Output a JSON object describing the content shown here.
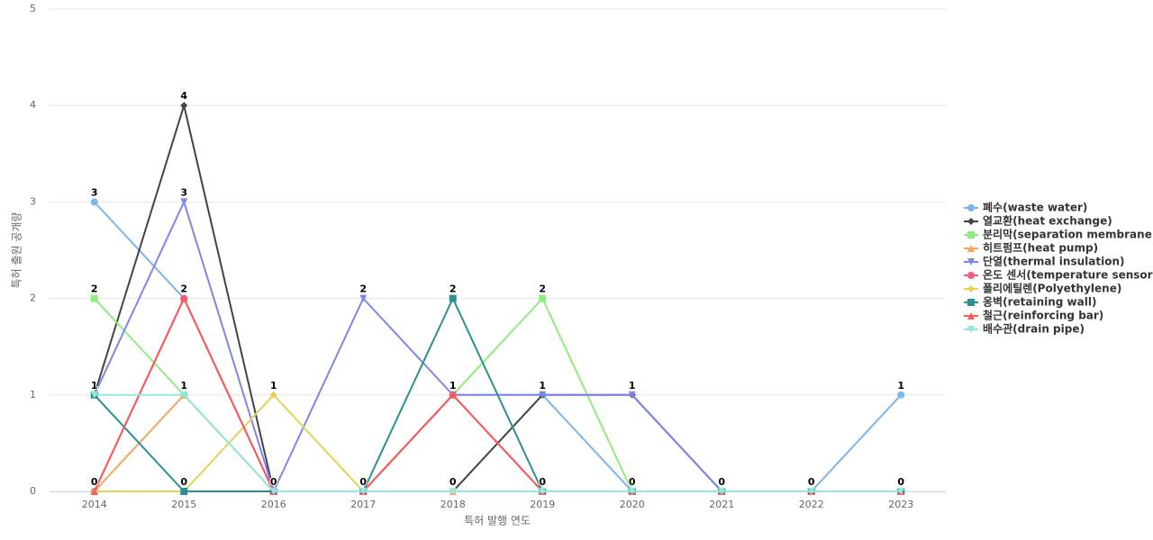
{
  "chart_data": {
    "type": "line",
    "x_label": "특허 발행 연도",
    "y_label": "특허 출원 공개량",
    "categories": [
      "2014",
      "2015",
      "2016",
      "2017",
      "2018",
      "2019",
      "2020",
      "2021",
      "2022",
      "2023"
    ],
    "ylim": [
      0,
      5
    ],
    "yticks": [
      0,
      1,
      2,
      3,
      4,
      5
    ],
    "grid": true,
    "legend": "right",
    "series": [
      {
        "name": "폐수(waste water)",
        "color": "#7cb5ec",
        "values": [
          3,
          2,
          0,
          0,
          1,
          1,
          0,
          0,
          0,
          1
        ]
      },
      {
        "name": "열교환(heat exchange)",
        "color": "#434348",
        "values": [
          1,
          4,
          0,
          0,
          0,
          1,
          1,
          0,
          0,
          0
        ]
      },
      {
        "name": "분리막(separation membrane)",
        "color": "#90ed7d",
        "values": [
          2,
          1,
          0,
          0,
          1,
          2,
          0,
          0,
          0,
          0
        ]
      },
      {
        "name": "히트펌프(heat pump)",
        "color": "#f7a35c",
        "values": [
          0,
          1,
          0,
          0,
          0,
          0,
          0,
          0,
          0,
          0
        ]
      },
      {
        "name": "단열(thermal insulation)",
        "color": "#8085e9",
        "values": [
          1,
          3,
          0,
          2,
          1,
          1,
          1,
          0,
          0,
          0
        ]
      },
      {
        "name": "온도 센서(temperature sensor)",
        "color": "#f15c80",
        "values": [
          0,
          2,
          0,
          0,
          1,
          0,
          0,
          0,
          0,
          0
        ]
      },
      {
        "name": "폴리에틸렌(Polyethylene)",
        "color": "#e4d354",
        "values": [
          0,
          0,
          1,
          0,
          0,
          0,
          0,
          0,
          0,
          0
        ]
      },
      {
        "name": "옹벽(retaining wall)",
        "color": "#2b908f",
        "values": [
          1,
          0,
          0,
          0,
          2,
          0,
          0,
          0,
          0,
          0
        ]
      },
      {
        "name": "철근(reinforcing bar)",
        "color": "#f45b5b",
        "values": [
          0,
          2,
          0,
          0,
          1,
          0,
          0,
          0,
          0,
          0
        ]
      },
      {
        "name": "배수관(drain pipe)",
        "color": "#91e8e1",
        "values": [
          1,
          1,
          0,
          0,
          0,
          0,
          0,
          0,
          0,
          0
        ]
      }
    ]
  }
}
